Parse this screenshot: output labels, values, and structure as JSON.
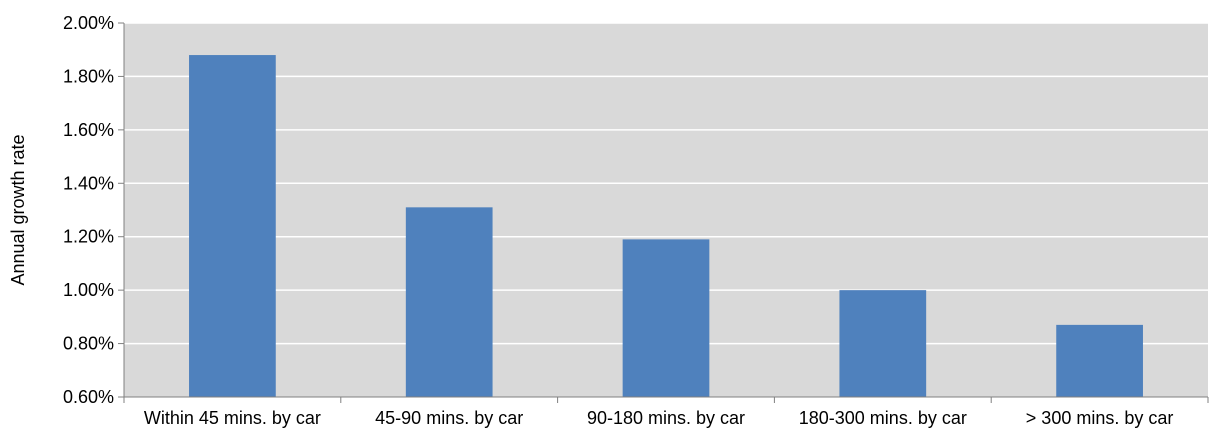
{
  "chart_data": {
    "type": "bar",
    "title": "",
    "xlabel": "",
    "ylabel": "Annual growth rate",
    "ylim": [
      0.6,
      2.0
    ],
    "yticks": [
      0.6,
      0.8,
      1.0,
      1.2,
      1.4,
      1.6,
      1.8,
      2.0
    ],
    "ytick_labels": [
      "0.60%",
      "0.80%",
      "1.00%",
      "1.20%",
      "1.40%",
      "1.60%",
      "1.80%",
      "2.00%"
    ],
    "categories": [
      "Within 45 mins. by car",
      "45-90 mins. by car",
      "90-180 mins. by car",
      "180-300 mins. by car",
      "> 300 mins. by car"
    ],
    "values": [
      1.88,
      1.31,
      1.19,
      1.0,
      0.87
    ],
    "grid": true,
    "legend": "none",
    "colors": {
      "bar": "#4F81BD",
      "plot_background": "#D9D9D9",
      "gridline": "#FFFFFF",
      "axis": "#808080"
    }
  }
}
